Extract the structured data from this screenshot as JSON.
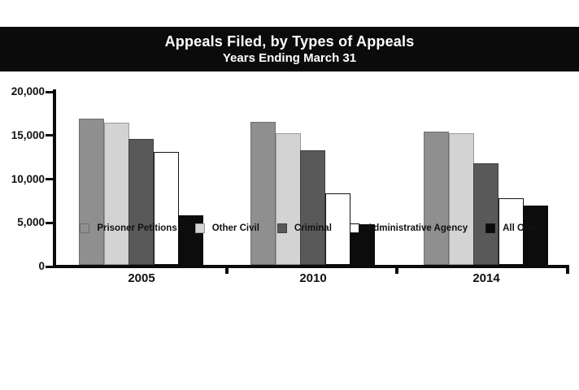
{
  "chart_data": {
    "type": "bar",
    "title": "Appeals Filed, by Types of Appeals",
    "subtitle": "Years Ending March 31",
    "categories": [
      "2005",
      "2010",
      "2014"
    ],
    "series": [
      {
        "name": "Prisoner Petitions",
        "color": "#8f8f8f",
        "border_color": "#6e6e6e",
        "values": [
          16750,
          16350,
          15250
        ]
      },
      {
        "name": "Other Civil",
        "color": "#d3d3d3",
        "border_color": "#9a9a9a",
        "values": [
          16300,
          15050,
          15050
        ]
      },
      {
        "name": "Criminal",
        "color": "#595959",
        "border_color": "#3e3e3e",
        "values": [
          14450,
          13150,
          11600
        ]
      },
      {
        "name": "Administrative Agency",
        "color": "#ffffff",
        "border_color": "#141414",
        "values": [
          12950,
          8200,
          7600
        ]
      },
      {
        "name": "All Other",
        "color": "#0c0c0c",
        "border_color": "#0c0c0c",
        "values": [
          5650,
          4650,
          6750
        ]
      }
    ],
    "xlabel": "",
    "ylabel": "",
    "ylim": [
      0,
      20000
    ],
    "y_tick_values": [
      20000,
      15000,
      10000,
      5000,
      0
    ],
    "y_tick_labels": [
      "20,000",
      "15,000",
      "10,000",
      "5,000",
      "0"
    ],
    "grid": false,
    "legend_position": "bottom",
    "axis_color": "#0b0b0b",
    "background_color": "#ffffff",
    "banner_background": "#0b0b0b",
    "banner_text_color": "#ffffff"
  }
}
